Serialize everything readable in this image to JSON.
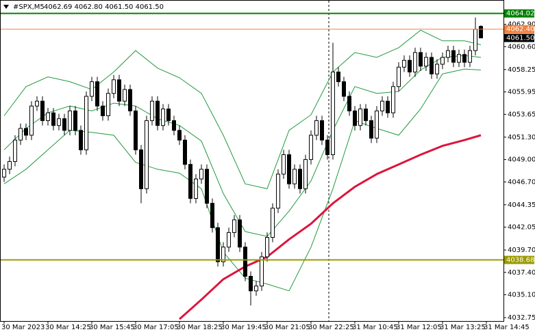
{
  "chart_data": {
    "type": "candlestick",
    "symbol": "#SPX,M5",
    "quote": "4062.69 4062.80 4061.50 4061.50",
    "ylim": [
      4032.4,
      4065.4
    ],
    "yticks": [
      {
        "value": 4062.9,
        "label": "4062.90"
      },
      {
        "value": 4060.6,
        "label": "4060.60"
      },
      4058.25,
      4055.95,
      4053.65,
      {
        "value": 4051.3,
        "label": "4051.30"
      },
      {
        "value": 4049,
        "label": "4049.00"
      },
      {
        "value": 4046.7,
        "label": "4046.70"
      },
      4044.35,
      4042.05,
      {
        "value": 4039.7,
        "label": "4039.70"
      },
      {
        "value": 4037.4,
        "label": "4037.40"
      },
      {
        "value": 4035.1,
        "label": "4035.10"
      },
      4032.75
    ],
    "xlim": [
      -0.75,
      91.125
    ],
    "xticks": [
      {
        "value": 0,
        "label": "30 Mar 2023"
      },
      {
        "value": 8,
        "label": "30 Mar 14:25"
      },
      {
        "value": 16,
        "label": "30 Mar 15:45"
      },
      {
        "value": 24,
        "label": "30 Mar 17:05"
      },
      {
        "value": 32,
        "label": "30 Mar 18:25"
      },
      {
        "value": 40,
        "label": "30 Mar 19:45"
      },
      {
        "value": 48,
        "label": "30 Mar 21:05"
      },
      {
        "value": 56,
        "label": "30 Mar 22:25"
      },
      {
        "value": 64,
        "label": "31 Mar 10:45"
      },
      {
        "value": 72,
        "label": "31 Mar 12:05"
      },
      {
        "value": 80,
        "label": "31 Mar 13:25"
      },
      {
        "value": 88,
        "label": "31 Mar 14:45"
      }
    ],
    "candles": {
      "open": [
        4047.2,
        4048.0,
        4048.8,
        4051.0,
        4052.2,
        4051.5,
        4054.5,
        4055.0,
        4053.0,
        4053.8,
        4052.5,
        4053.2,
        4052.0,
        4054.0,
        4052.0,
        4050.0,
        4055.5,
        4057.0,
        4054.5,
        4053.5,
        4055.8,
        4057.2,
        4055.0,
        4056.2,
        4054.0,
        4050.0,
        4046.0,
        4053.0,
        4055.0,
        4052.5,
        4054.2,
        4053.0,
        4052.0,
        4051.0,
        4048.5,
        4045.0,
        4047.0,
        4048.0,
        4044.5,
        4042.0,
        4038.5,
        4040.0,
        4041.5,
        4042.8,
        4040.0,
        4037.0,
        4035.5,
        4036.0,
        4039.0,
        4041.0,
        4044.0,
        4047.5,
        4049.5,
        4046.5,
        4048.0,
        4046.0,
        4049.0,
        4051.5,
        4053.0,
        4051.0,
        4049.5,
        4058.0,
        4057.0,
        4055.5,
        4054.0,
        4052.5,
        4054.2,
        4053.0,
        4051.2,
        4054.0,
        4055.0,
        4053.8,
        4056.5,
        4058.5,
        4059.2,
        4058.0,
        4060.0,
        4058.6,
        4059.5,
        4057.8,
        4058.8,
        4059.5,
        4060.2,
        4059.0,
        4059.8,
        4059.0,
        4060.2,
        4062.69
      ],
      "high": [
        4048.5,
        4049.3,
        4051.5,
        4052.7,
        4052.7,
        4055.0,
        4055.5,
        4055.5,
        4054.3,
        4054.3,
        4053.7,
        4053.7,
        4054.5,
        4054.5,
        4052.5,
        4056.0,
        4057.5,
        4057.5,
        4055.0,
        4056.3,
        4057.7,
        4057.7,
        4056.7,
        4056.7,
        4054.5,
        4050.5,
        4053.5,
        4055.5,
        4055.5,
        4054.7,
        4054.7,
        4053.5,
        4052.5,
        4051.5,
        4049.0,
        4047.5,
        4048.5,
        4048.5,
        4045.0,
        4042.5,
        4040.5,
        4042.0,
        4043.3,
        4043.3,
        4040.5,
        4037.5,
        4036.5,
        4039.5,
        4041.5,
        4044.5,
        4048.0,
        4050.0,
        4050.0,
        4048.5,
        4048.5,
        4049.5,
        4052.0,
        4053.5,
        4053.5,
        4051.5,
        4061.0,
        4058.5,
        4057.5,
        4056.0,
        4054.5,
        4054.7,
        4054.7,
        4053.5,
        4054.5,
        4055.5,
        4055.5,
        4057.0,
        4059.0,
        4059.7,
        4059.7,
        4060.5,
        4060.5,
        4060.0,
        4060.0,
        4059.3,
        4060.0,
        4060.7,
        4060.7,
        4060.3,
        4060.3,
        4060.7,
        4063.6,
        4062.8
      ],
      "low": [
        4046.7,
        4047.5,
        4048.3,
        4050.5,
        4051.0,
        4051.0,
        4054.0,
        4052.5,
        4052.5,
        4052.0,
        4052.0,
        4051.5,
        4051.5,
        4051.5,
        4049.5,
        4049.5,
        4055.0,
        4054.0,
        4053.0,
        4053.0,
        4055.3,
        4054.5,
        4054.5,
        4053.5,
        4049.5,
        4044.5,
        4045.5,
        4052.5,
        4052.0,
        4052.0,
        4052.5,
        4051.5,
        4050.5,
        4048.0,
        4044.5,
        4044.5,
        4046.5,
        4044.0,
        4041.5,
        4038.0,
        4038.0,
        4039.5,
        4041.0,
        4039.5,
        4036.5,
        4034.0,
        4035.0,
        4035.5,
        4038.5,
        4040.5,
        4043.5,
        4047.0,
        4046.0,
        4046.0,
        4045.5,
        4045.5,
        4048.5,
        4051.0,
        4050.5,
        4049.0,
        4049.0,
        4056.5,
        4055.0,
        4053.5,
        4052.0,
        4052.0,
        4052.5,
        4050.7,
        4050.7,
        4053.5,
        4053.3,
        4053.3,
        4056.0,
        4058.0,
        4057.5,
        4057.5,
        4058.1,
        4058.1,
        4057.3,
        4057.3,
        4058.3,
        4059.0,
        4058.5,
        4058.5,
        4058.5,
        4058.5,
        4059.7,
        4061.5
      ],
      "close": [
        4048.0,
        4048.8,
        4051.0,
        4052.2,
        4051.5,
        4054.5,
        4055.0,
        4053.0,
        4053.8,
        4052.5,
        4053.2,
        4052.0,
        4054.0,
        4052.0,
        4050.0,
        4055.5,
        4057.0,
        4054.5,
        4053.5,
        4055.8,
        4057.2,
        4055.0,
        4056.2,
        4054.0,
        4050.0,
        4046.0,
        4053.0,
        4055.0,
        4052.5,
        4054.2,
        4053.0,
        4052.0,
        4051.0,
        4048.5,
        4045.0,
        4047.0,
        4048.0,
        4044.5,
        4042.0,
        4038.5,
        4040.0,
        4041.5,
        4042.8,
        4040.0,
        4037.0,
        4035.5,
        4036.0,
        4039.0,
        4041.0,
        4044.0,
        4047.5,
        4049.5,
        4046.5,
        4048.0,
        4046.0,
        4049.0,
        4051.5,
        4053.0,
        4051.0,
        4049.5,
        4058.0,
        4057.0,
        4055.5,
        4054.0,
        4052.5,
        4054.2,
        4053.0,
        4051.2,
        4054.0,
        4055.0,
        4053.8,
        4056.5,
        4058.5,
        4059.2,
        4058.0,
        4060.0,
        4058.6,
        4059.5,
        4057.8,
        4058.8,
        4059.5,
        4060.2,
        4059.0,
        4059.8,
        4059.0,
        4060.2,
        4062.4,
        4061.5
      ]
    },
    "series": [
      {
        "color": "#1e9a3c",
        "x": [
          0,
          4,
          8,
          12,
          16,
          20,
          24,
          28,
          32,
          36,
          40,
          44,
          48,
          52,
          56,
          60,
          64,
          68,
          72,
          76,
          80,
          84,
          87
        ],
        "values": [
          4053.5,
          4056.5,
          4057.5,
          4057.0,
          4056.2,
          4058.0,
          4060.2,
          4058.4,
          4057.4,
          4055.8,
          4051.5,
          4046.5,
          4046.0,
          4052.0,
          4053.6,
          4058.0,
          4060.0,
          4059.5,
          4060.5,
          4062.3,
          4061.2,
          4061.2,
          4060.8
        ]
      },
      {
        "color": "#1e9a3c",
        "x": [
          0,
          4,
          8,
          12,
          16,
          20,
          24,
          28,
          32,
          36,
          40,
          44,
          48,
          52,
          56,
          60,
          64,
          68,
          72,
          76,
          80,
          84,
          87
        ],
        "values": [
          4050.0,
          4052.2,
          4053.8,
          4054.5,
          4054.0,
          4054.8,
          4054.5,
          4053.2,
          4052.5,
          4050.9,
          4045.5,
          4041.6,
          4041.1,
          4043.7,
          4046.8,
          4052.0,
          4056.5,
          4055.8,
          4056.0,
          4058.2,
          4059.5,
          4059.7,
          4059.5
        ]
      },
      {
        "color": "#1e9a3c",
        "x": [
          0,
          4,
          8,
          12,
          16,
          20,
          24,
          28,
          32,
          36,
          40,
          44,
          48,
          52,
          56,
          60,
          64,
          68,
          72,
          76,
          80,
          84,
          87
        ],
        "values": [
          4046.5,
          4048.0,
          4050.0,
          4052.0,
          4051.8,
          4051.5,
          4048.7,
          4048.0,
          4047.6,
          4046.0,
          4039.5,
          4036.8,
          4036.2,
          4035.5,
          4040.0,
          4046.0,
          4053.0,
          4052.2,
          4051.5,
          4054.2,
          4057.8,
          4058.3,
          4058.2
        ]
      },
      {
        "color": "#dc143c",
        "x": [
          32,
          36,
          40,
          44,
          48,
          52,
          56,
          60,
          64,
          68,
          72,
          76,
          80,
          84,
          87
        ],
        "values": [
          4032.6,
          4034.6,
          4036.7,
          4038.0,
          4039.0,
          4040.8,
          4042.4,
          4044.5,
          4046.2,
          4047.5,
          4048.5,
          4049.5,
          4050.4,
          4051.0,
          4051.5
        ]
      }
    ],
    "hlines": [
      {
        "value": 4064.02,
        "label": "4064.02",
        "color": "#008000"
      },
      {
        "value": 4062.4,
        "label": "4062.40",
        "color": "#f08040"
      },
      {
        "value": 4038.68,
        "label": "4038.68",
        "color": "#999900"
      }
    ],
    "price_label": {
      "value": 4061.5,
      "label": "4061.50",
      "color": "#000000"
    }
  }
}
